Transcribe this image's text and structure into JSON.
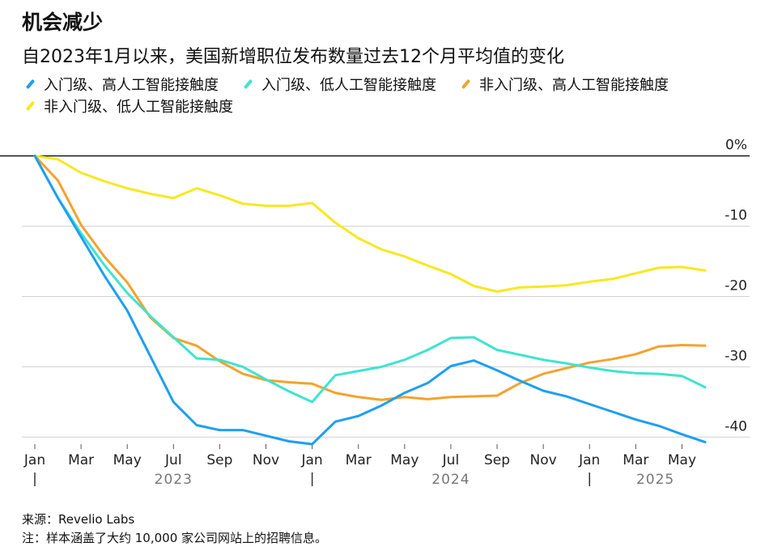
{
  "title": "机会减少",
  "subtitle": "自2023年1月以来，美国新增职位发布数量过去12个月平均值的变化",
  "source": "来源：Revelio Labs",
  "note": "注：样本涵盖了大约 10,000 家公司网站上的招聘信息。",
  "chart_data": {
    "type": "line",
    "ylim": [
      -41,
      1
    ],
    "y_ticks": [
      0,
      -10,
      -20,
      -30,
      -40
    ],
    "y_tick_labels": [
      "0%",
      "-10",
      "-20",
      "-30",
      "-40"
    ],
    "x_months": [
      "2023-01",
      "2023-02",
      "2023-03",
      "2023-04",
      "2023-05",
      "2023-06",
      "2023-07",
      "2023-08",
      "2023-09",
      "2023-10",
      "2023-11",
      "2023-12",
      "2024-01",
      "2024-02",
      "2024-03",
      "2024-04",
      "2024-05",
      "2024-06",
      "2024-07",
      "2024-08",
      "2024-09",
      "2024-10",
      "2024-11",
      "2024-12",
      "2025-01",
      "2025-02",
      "2025-03",
      "2025-04",
      "2025-05",
      "2025-06"
    ],
    "x_tick_labels": [
      "Jan",
      "Mar",
      "May",
      "Jul",
      "Sep",
      "Nov",
      "Jan",
      "Mar",
      "May",
      "Jul",
      "Sep",
      "Nov",
      "Jan",
      "Mar",
      "May"
    ],
    "year_labels": [
      "2023",
      "2024",
      "2025"
    ],
    "series": [
      {
        "name": "入门级、高人工智能接触度",
        "color": "#1e9ff0",
        "values": [
          0,
          -6,
          -11.5,
          -17,
          -22,
          -28.5,
          -35,
          -38.3,
          -39,
          -39,
          -39.8,
          -40.6,
          -41,
          -37.8,
          -37,
          -35.5,
          -33.7,
          -32.3,
          -29.9,
          -29.1,
          -30.5,
          -32,
          -33.4,
          -34.2,
          -35.3,
          -36.4,
          -37.5,
          -38.4,
          -39.6,
          -40.7
        ]
      },
      {
        "name": "入门级、低人工智能接触度",
        "color": "#3ee4cf",
        "values": [
          0,
          -6,
          -11,
          -15.5,
          -19.5,
          -22.8,
          -25.8,
          -28.8,
          -29,
          -30,
          -31.8,
          -33.5,
          -35,
          -31.2,
          -30.6,
          -30,
          -29,
          -27.6,
          -25.9,
          -25.8,
          -27.6,
          -28.3,
          -29,
          -29.5,
          -30.1,
          -30.6,
          -30.9,
          -31,
          -31.3,
          -32.9
        ]
      },
      {
        "name": "非入门级、高人工智能接触度",
        "color": "#f5a22d",
        "values": [
          0,
          -3.5,
          -9.8,
          -14.3,
          -18,
          -23,
          -25.9,
          -27,
          -29.2,
          -31,
          -31.9,
          -32.2,
          -32.4,
          -33.7,
          -34.3,
          -34.7,
          -34.3,
          -34.6,
          -34.3,
          -34.2,
          -34.1,
          -32.3,
          -31,
          -30.2,
          -29.4,
          -28.9,
          -28.2,
          -27.1,
          -26.9,
          -27
        ]
      },
      {
        "name": "非入门级、低人工智能接触度",
        "color": "#f7e820",
        "values": [
          0,
          -0.5,
          -2.4,
          -3.6,
          -4.6,
          -5.4,
          -6,
          -4.6,
          -5.6,
          -6.8,
          -7.1,
          -7.1,
          -6.7,
          -9.5,
          -11.7,
          -13.3,
          -14.3,
          -15.6,
          -16.8,
          -18.5,
          -19.3,
          -18.7,
          -18.6,
          -18.4,
          -17.9,
          -17.5,
          -16.7,
          -15.9,
          -15.8,
          -16.3
        ]
      }
    ]
  }
}
